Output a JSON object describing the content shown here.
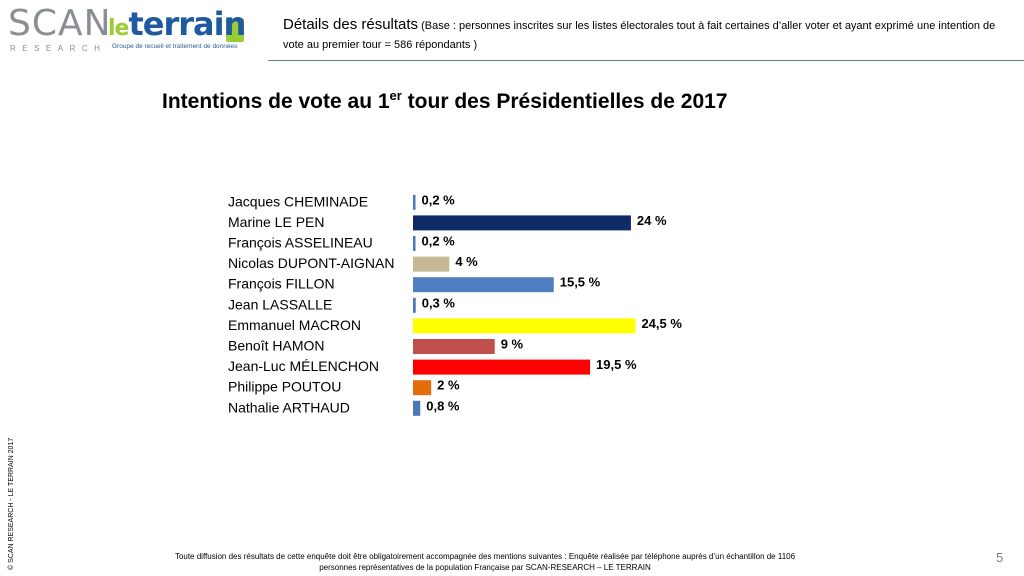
{
  "logos": {
    "scan": {
      "word": "SCAN",
      "sub": "RESEARCH"
    },
    "terrain": {
      "le": "le",
      "main": "terrain",
      "tagline": "Groupe de recueil et traitement de données"
    }
  },
  "header": {
    "title": "Détails des résultats",
    "note": "(Base : personnes inscrites sur les listes électorales tout à fait certaines d’aller voter et ayant exprimé une intention de vote au premier tour = 586 répondants )"
  },
  "chart_data": {
    "type": "bar",
    "orientation": "horizontal",
    "title_prefix": "Intentions de vote au 1",
    "title_sup": "er",
    "title_suffix": " tour des Présidentielles de 2017",
    "categories": [
      "Jacques CHEMINADE",
      "Marine LE PEN",
      "François ASSELINEAU",
      "Nicolas DUPONT-AIGNAN",
      "François FILLON",
      "Jean LASSALLE",
      "Emmanuel MACRON",
      "Benoît HAMON",
      "Jean-Luc MÉLENCHON",
      "Philippe POUTOU",
      "Nathalie ARTHAUD"
    ],
    "values": [
      0.2,
      24,
      0.2,
      4,
      15.5,
      0.3,
      24.5,
      9,
      19.5,
      2,
      0.8
    ],
    "value_labels": [
      "0,2 %",
      "24 %",
      "0,2 %",
      "4 %",
      "15,5 %",
      "0,3 %",
      "24,5 %",
      "9 %",
      "19,5 %",
      "2 %",
      "0,8 %"
    ],
    "colors": [
      "#4a78b8",
      "#0f2a66",
      "#4a78b8",
      "#c4b896",
      "#4f7fc0",
      "#4a78b8",
      "#ffff00",
      "#c0504d",
      "#ff0000",
      "#e46c0a",
      "#4a78b8"
    ],
    "xlim": [
      0,
      25
    ],
    "xlabel": "",
    "ylabel": ""
  },
  "footer": {
    "line1": "Toute diffusion des résultats de cette enquête doit être obligatoirement accompagnée des mentions suivantes : Enquête réalisée par téléphone auprès d’un échantillon de 1106",
    "line2": "personnes représentatives de la population Française par SCAN-RESEARCH – LE TERRAIN"
  },
  "copyright": "© SCAN RESEARCH - LE TERRAIN 2017",
  "page_number": "5"
}
